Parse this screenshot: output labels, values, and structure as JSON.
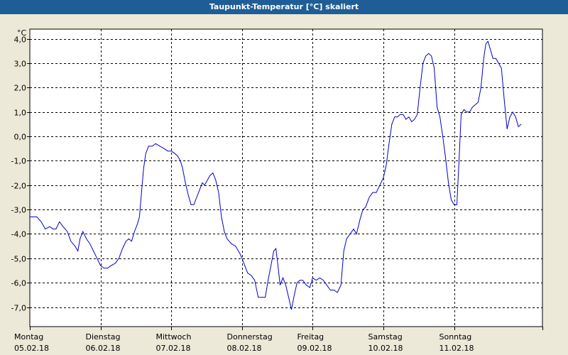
{
  "title": "Taupunkt-Temperatur [°C] skaliert",
  "colors": {
    "title_bar": "#1f5d96",
    "background": "#ece9d8",
    "plot_area": "#ffffff",
    "line": "#0000cc",
    "grid": "#000000"
  },
  "chart_data": {
    "type": "line",
    "title": "Taupunkt-Temperatur [°C] skaliert",
    "ylabel": "°C",
    "xlabel": "",
    "ylim": [
      -7.8,
      4.4
    ],
    "xlim": [
      0,
      7.25
    ],
    "grid": true,
    "y_ticks": [
      {
        "value": 4,
        "label": "4,0"
      },
      {
        "value": 3,
        "label": "3,0"
      },
      {
        "value": 2,
        "label": "2,0"
      },
      {
        "value": 1,
        "label": "1,0"
      },
      {
        "value": 0,
        "label": "0,0"
      },
      {
        "value": -1,
        "label": "-1,0"
      },
      {
        "value": -2,
        "label": "-2,0"
      },
      {
        "value": -3,
        "label": "-3,0"
      },
      {
        "value": -4,
        "label": "-4,0"
      },
      {
        "value": -5,
        "label": "-5,0"
      },
      {
        "value": -6,
        "label": "-6,0"
      },
      {
        "value": -7,
        "label": "-7,0"
      }
    ],
    "x_ticks": [
      {
        "value": 0,
        "day": "Montag",
        "date": "05.02.18"
      },
      {
        "value": 1,
        "day": "Dienstag",
        "date": "06.02.18"
      },
      {
        "value": 2,
        "day": "Mittwoch",
        "date": "07.02.18"
      },
      {
        "value": 3,
        "day": "Donnerstag",
        "date": "08.02.18"
      },
      {
        "value": 4,
        "day": "Freitag",
        "date": "09.02.18"
      },
      {
        "value": 5,
        "day": "Samstag",
        "date": "10.02.18"
      },
      {
        "value": 6,
        "day": "Sonntag",
        "date": "11.02.18"
      }
    ],
    "series": [
      {
        "values": [
          [
            0.0,
            -3.3
          ],
          [
            0.1,
            -3.3
          ],
          [
            0.16,
            -3.5
          ],
          [
            0.22,
            -3.8
          ],
          [
            0.28,
            -3.7
          ],
          [
            0.33,
            -3.8
          ],
          [
            0.37,
            -3.8
          ],
          [
            0.42,
            -3.5
          ],
          [
            0.47,
            -3.7
          ],
          [
            0.53,
            -3.9
          ],
          [
            0.58,
            -4.3
          ],
          [
            0.64,
            -4.5
          ],
          [
            0.68,
            -4.7
          ],
          [
            0.71,
            -4.2
          ],
          [
            0.75,
            -3.9
          ],
          [
            0.8,
            -4.2
          ],
          [
            0.85,
            -4.4
          ],
          [
            0.9,
            -4.7
          ],
          [
            0.95,
            -5.0
          ],
          [
            1.0,
            -5.3
          ],
          [
            1.05,
            -5.4
          ],
          [
            1.1,
            -5.4
          ],
          [
            1.15,
            -5.3
          ],
          [
            1.21,
            -5.2
          ],
          [
            1.26,
            -5.0
          ],
          [
            1.31,
            -4.6
          ],
          [
            1.36,
            -4.3
          ],
          [
            1.4,
            -4.2
          ],
          [
            1.44,
            -4.3
          ],
          [
            1.48,
            -3.9
          ],
          [
            1.52,
            -3.6
          ],
          [
            1.55,
            -3.3
          ],
          [
            1.58,
            -2.3
          ],
          [
            1.61,
            -1.3
          ],
          [
            1.64,
            -0.7
          ],
          [
            1.68,
            -0.4
          ],
          [
            1.73,
            -0.4
          ],
          [
            1.78,
            -0.3
          ],
          [
            1.84,
            -0.4
          ],
          [
            1.9,
            -0.5
          ],
          [
            1.95,
            -0.6
          ],
          [
            2.0,
            -0.6
          ],
          [
            2.05,
            -0.7
          ],
          [
            2.09,
            -0.8
          ],
          [
            2.13,
            -1.0
          ],
          [
            2.16,
            -1.3
          ],
          [
            2.2,
            -1.9
          ],
          [
            2.24,
            -2.4
          ],
          [
            2.28,
            -2.8
          ],
          [
            2.32,
            -2.8
          ],
          [
            2.36,
            -2.5
          ],
          [
            2.4,
            -2.2
          ],
          [
            2.44,
            -1.9
          ],
          [
            2.47,
            -2.0
          ],
          [
            2.51,
            -1.8
          ],
          [
            2.55,
            -1.6
          ],
          [
            2.59,
            -1.5
          ],
          [
            2.63,
            -1.8
          ],
          [
            2.67,
            -2.3
          ],
          [
            2.71,
            -3.3
          ],
          [
            2.75,
            -3.9
          ],
          [
            2.79,
            -4.2
          ],
          [
            2.85,
            -4.4
          ],
          [
            2.91,
            -4.5
          ],
          [
            2.97,
            -4.8
          ],
          [
            3.0,
            -5.0
          ],
          [
            3.04,
            -5.3
          ],
          [
            3.08,
            -5.6
          ],
          [
            3.13,
            -5.7
          ],
          [
            3.18,
            -5.9
          ],
          [
            3.23,
            -6.6
          ],
          [
            3.28,
            -6.6
          ],
          [
            3.33,
            -6.6
          ],
          [
            3.37,
            -5.9
          ],
          [
            3.41,
            -5.3
          ],
          [
            3.45,
            -4.7
          ],
          [
            3.48,
            -4.6
          ],
          [
            3.51,
            -5.3
          ],
          [
            3.54,
            -6.1
          ],
          [
            3.58,
            -5.8
          ],
          [
            3.62,
            -6.1
          ],
          [
            3.66,
            -6.6
          ],
          [
            3.7,
            -7.1
          ],
          [
            3.74,
            -6.5
          ],
          [
            3.78,
            -6.0
          ],
          [
            3.82,
            -5.9
          ],
          [
            3.86,
            -5.9
          ],
          [
            3.91,
            -6.1
          ],
          [
            3.96,
            -6.2
          ],
          [
            4.0,
            -5.8
          ],
          [
            4.05,
            -5.9
          ],
          [
            4.1,
            -5.8
          ],
          [
            4.15,
            -5.9
          ],
          [
            4.2,
            -6.1
          ],
          [
            4.25,
            -6.3
          ],
          [
            4.3,
            -6.3
          ],
          [
            4.35,
            -6.4
          ],
          [
            4.4,
            -6.1
          ],
          [
            4.44,
            -4.7
          ],
          [
            4.48,
            -4.2
          ],
          [
            4.53,
            -4.0
          ],
          [
            4.58,
            -3.8
          ],
          [
            4.62,
            -4.0
          ],
          [
            4.67,
            -3.4
          ],
          [
            4.71,
            -3.0
          ],
          [
            4.75,
            -2.9
          ],
          [
            4.8,
            -2.5
          ],
          [
            4.85,
            -2.3
          ],
          [
            4.9,
            -2.3
          ],
          [
            4.95,
            -2.0
          ],
          [
            5.0,
            -1.7
          ],
          [
            5.04,
            -1.2
          ],
          [
            5.08,
            -0.3
          ],
          [
            5.12,
            0.5
          ],
          [
            5.16,
            0.8
          ],
          [
            5.2,
            0.8
          ],
          [
            5.24,
            0.9
          ],
          [
            5.28,
            0.9
          ],
          [
            5.32,
            0.7
          ],
          [
            5.36,
            0.8
          ],
          [
            5.4,
            0.6
          ],
          [
            5.44,
            0.7
          ],
          [
            5.48,
            0.9
          ],
          [
            5.52,
            2.0
          ],
          [
            5.56,
            3.0
          ],
          [
            5.6,
            3.3
          ],
          [
            5.64,
            3.4
          ],
          [
            5.68,
            3.3
          ],
          [
            5.72,
            2.8
          ],
          [
            5.76,
            1.2
          ],
          [
            5.8,
            0.8
          ],
          [
            5.84,
            0.0
          ],
          [
            5.88,
            -0.9
          ],
          [
            5.92,
            -1.9
          ],
          [
            5.96,
            -2.6
          ],
          [
            6.0,
            -2.8
          ],
          [
            6.04,
            -2.8
          ],
          [
            6.07,
            -1.0
          ],
          [
            6.1,
            0.9
          ],
          [
            6.14,
            1.1
          ],
          [
            6.18,
            1.0
          ],
          [
            6.22,
            1.0
          ],
          [
            6.26,
            1.2
          ],
          [
            6.3,
            1.3
          ],
          [
            6.34,
            1.4
          ],
          [
            6.38,
            2.0
          ],
          [
            6.42,
            3.2
          ],
          [
            6.45,
            3.8
          ],
          [
            6.48,
            3.9
          ],
          [
            6.51,
            3.6
          ],
          [
            6.55,
            3.2
          ],
          [
            6.59,
            3.2
          ],
          [
            6.63,
            3.0
          ],
          [
            6.67,
            2.8
          ],
          [
            6.71,
            1.5
          ],
          [
            6.75,
            0.3
          ],
          [
            6.79,
            0.8
          ],
          [
            6.83,
            1.0
          ],
          [
            6.87,
            0.8
          ],
          [
            6.91,
            0.4
          ],
          [
            6.95,
            0.5
          ]
        ]
      }
    ]
  }
}
